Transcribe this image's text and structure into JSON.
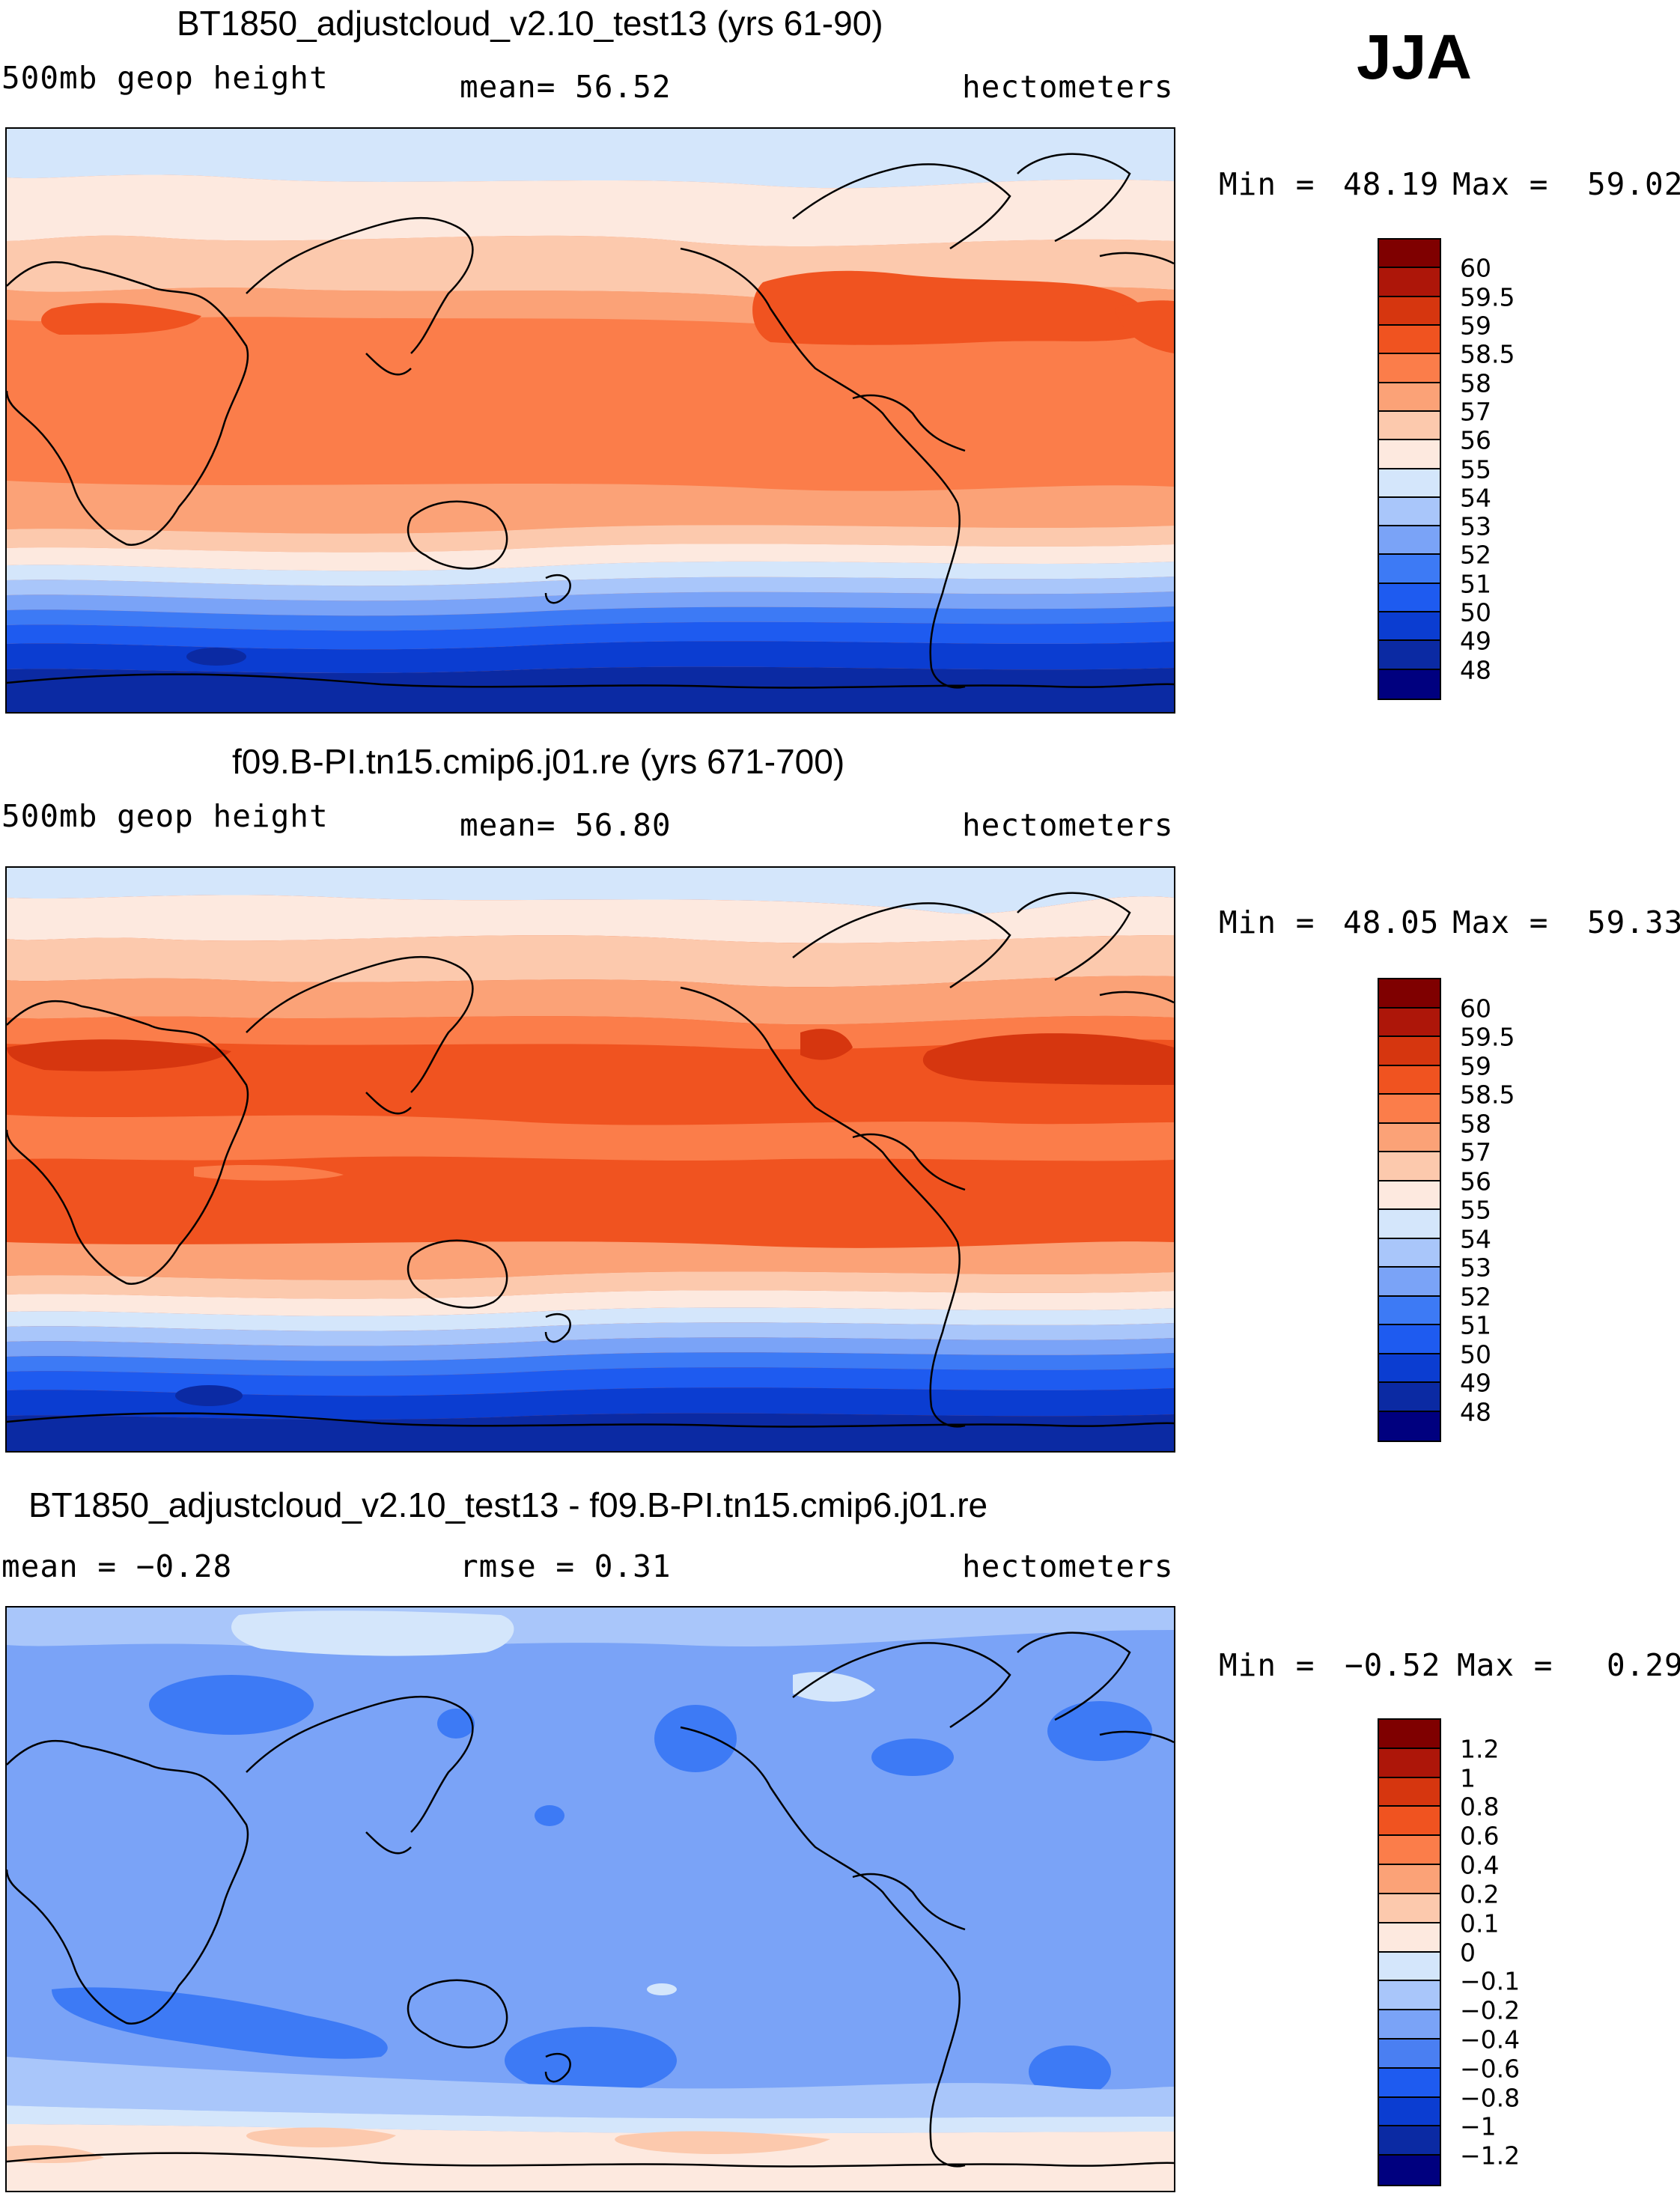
{
  "season": "JJA",
  "palettes": {
    "field": [
      "#00007f",
      "#0b2aa3",
      "#0b3dd1",
      "#1e5bf0",
      "#3d7af5",
      "#7aa3f7",
      "#a9c6fa",
      "#d4e6fb",
      "#fde9df",
      "#fcc9ad",
      "#fba277",
      "#fb7d4a",
      "#f05320",
      "#d6360f",
      "#ad1609",
      "#7f0000"
    ],
    "diff": [
      "#00007f",
      "#0b2aa3",
      "#0b3dd1",
      "#1e5bf0",
      "#4a7ff2",
      "#7aa3f7",
      "#a9c6fa",
      "#d4e6fb",
      "#fde9df",
      "#fcc9ad",
      "#fba277",
      "#fb7d4a",
      "#f05320",
      "#d6360f",
      "#ad1609",
      "#7f0000"
    ]
  },
  "panels": [
    {
      "title": "BT1850_adjustcloud_v2.10_test13 (yrs 61-90)",
      "left_label": "500mb  geop  height",
      "mid_label": "mean=   56.52",
      "right_label": "hectometers",
      "min_label": "Min  =",
      "min_value": "48.19",
      "max_label": "Max  =",
      "max_value": "59.02",
      "colorbar_labels": [
        "60",
        "59.5",
        "59",
        "58.5",
        "58",
        "57",
        "56",
        "55",
        "54",
        "53",
        "52",
        "51",
        "50",
        "49",
        "48"
      ],
      "chart_data": {
        "type": "heatmap",
        "title": "BT1850_adjustcloud_v2.10_test13 (yrs 61-90)",
        "variable": "500mb geop height",
        "units": "hectometers",
        "mean": 56.52,
        "min": 48.19,
        "max": 59.02,
        "contour_levels": [
          48,
          49,
          50,
          51,
          52,
          53,
          54,
          55,
          56,
          57,
          58,
          58.5,
          59,
          59.5,
          60
        ],
        "zonal_band_values": [
          {
            "lat": 85,
            "value": 54.5
          },
          {
            "lat": 70,
            "value": 55.5
          },
          {
            "lat": 55,
            "value": 56.5
          },
          {
            "lat": 40,
            "value": 57.5
          },
          {
            "lat": 25,
            "value": 58.2
          },
          {
            "lat": 0,
            "value": 58.3
          },
          {
            "lat": -25,
            "value": 57.8
          },
          {
            "lat": -40,
            "value": 55.5
          },
          {
            "lat": -50,
            "value": 53
          },
          {
            "lat": -60,
            "value": 51
          },
          {
            "lat": -75,
            "value": 49.5
          },
          {
            "lat": -88,
            "value": 49
          }
        ]
      }
    },
    {
      "title": "f09.B-PI.tn15.cmip6.j01.re (yrs 671-700)",
      "left_label": "500mb  geop  height",
      "mid_label": "mean=   56.80",
      "right_label": "hectometers",
      "min_label": "Min  =",
      "min_value": "48.05",
      "max_label": "Max  =",
      "max_value": "59.33",
      "colorbar_labels": [
        "60",
        "59.5",
        "59",
        "58.5",
        "58",
        "57",
        "56",
        "55",
        "54",
        "53",
        "52",
        "51",
        "50",
        "49",
        "48"
      ],
      "chart_data": {
        "type": "heatmap",
        "title": "f09.B-PI.tn15.cmip6.j01.re (yrs 671-700)",
        "variable": "500mb geop height",
        "units": "hectometers",
        "mean": 56.8,
        "min": 48.05,
        "max": 59.33,
        "contour_levels": [
          48,
          49,
          50,
          51,
          52,
          53,
          54,
          55,
          56,
          57,
          58,
          58.5,
          59,
          59.5,
          60
        ],
        "zonal_band_values": [
          {
            "lat": 85,
            "value": 54.8
          },
          {
            "lat": 70,
            "value": 55.8
          },
          {
            "lat": 55,
            "value": 56.8
          },
          {
            "lat": 40,
            "value": 57.8
          },
          {
            "lat": 25,
            "value": 58.7
          },
          {
            "lat": 0,
            "value": 58.6
          },
          {
            "lat": -25,
            "value": 58.1
          },
          {
            "lat": -40,
            "value": 55.8
          },
          {
            "lat": -50,
            "value": 53.3
          },
          {
            "lat": -60,
            "value": 51.2
          },
          {
            "lat": -75,
            "value": 49.6
          },
          {
            "lat": -88,
            "value": 49
          }
        ]
      }
    },
    {
      "title": "BT1850_adjustcloud_v2.10_test13 - f09.B-PI.tn15.cmip6.j01.re",
      "left_label": "mean  =   −0.28",
      "mid_label": "rmse  =    0.31",
      "right_label": "hectometers",
      "min_label": "Min  =",
      "min_value": "−0.52",
      "max_label": "Max  =",
      "max_value": "0.29",
      "colorbar_labels": [
        "1.2",
        "1",
        "0.8",
        "0.6",
        "0.4",
        "0.2",
        "0.1",
        "0",
        "−0.1",
        "−0.2",
        "−0.4",
        "−0.6",
        "−0.8",
        "−1",
        "−1.2"
      ],
      "chart_data": {
        "type": "heatmap",
        "title": "BT1850_adjustcloud_v2.10_test13 - f09.B-PI.tn15.cmip6.j01.re",
        "units": "hectometers",
        "mean": -0.28,
        "rmse": 0.31,
        "min": -0.52,
        "max": 0.29,
        "contour_levels": [
          -1.2,
          -1,
          -0.8,
          -0.6,
          -0.4,
          -0.2,
          -0.1,
          0,
          0.1,
          0.2,
          0.4,
          0.6,
          0.8,
          1,
          1.2
        ],
        "zonal_band_values": [
          {
            "lat": 85,
            "value": -0.15
          },
          {
            "lat": 60,
            "value": -0.3
          },
          {
            "lat": 30,
            "value": -0.3
          },
          {
            "lat": 0,
            "value": -0.3
          },
          {
            "lat": -30,
            "value": -0.35
          },
          {
            "lat": -50,
            "value": -0.2
          },
          {
            "lat": -65,
            "value": 0.05
          },
          {
            "lat": -75,
            "value": 0.1
          },
          {
            "lat": -88,
            "value": 0.05
          }
        ]
      }
    }
  ]
}
